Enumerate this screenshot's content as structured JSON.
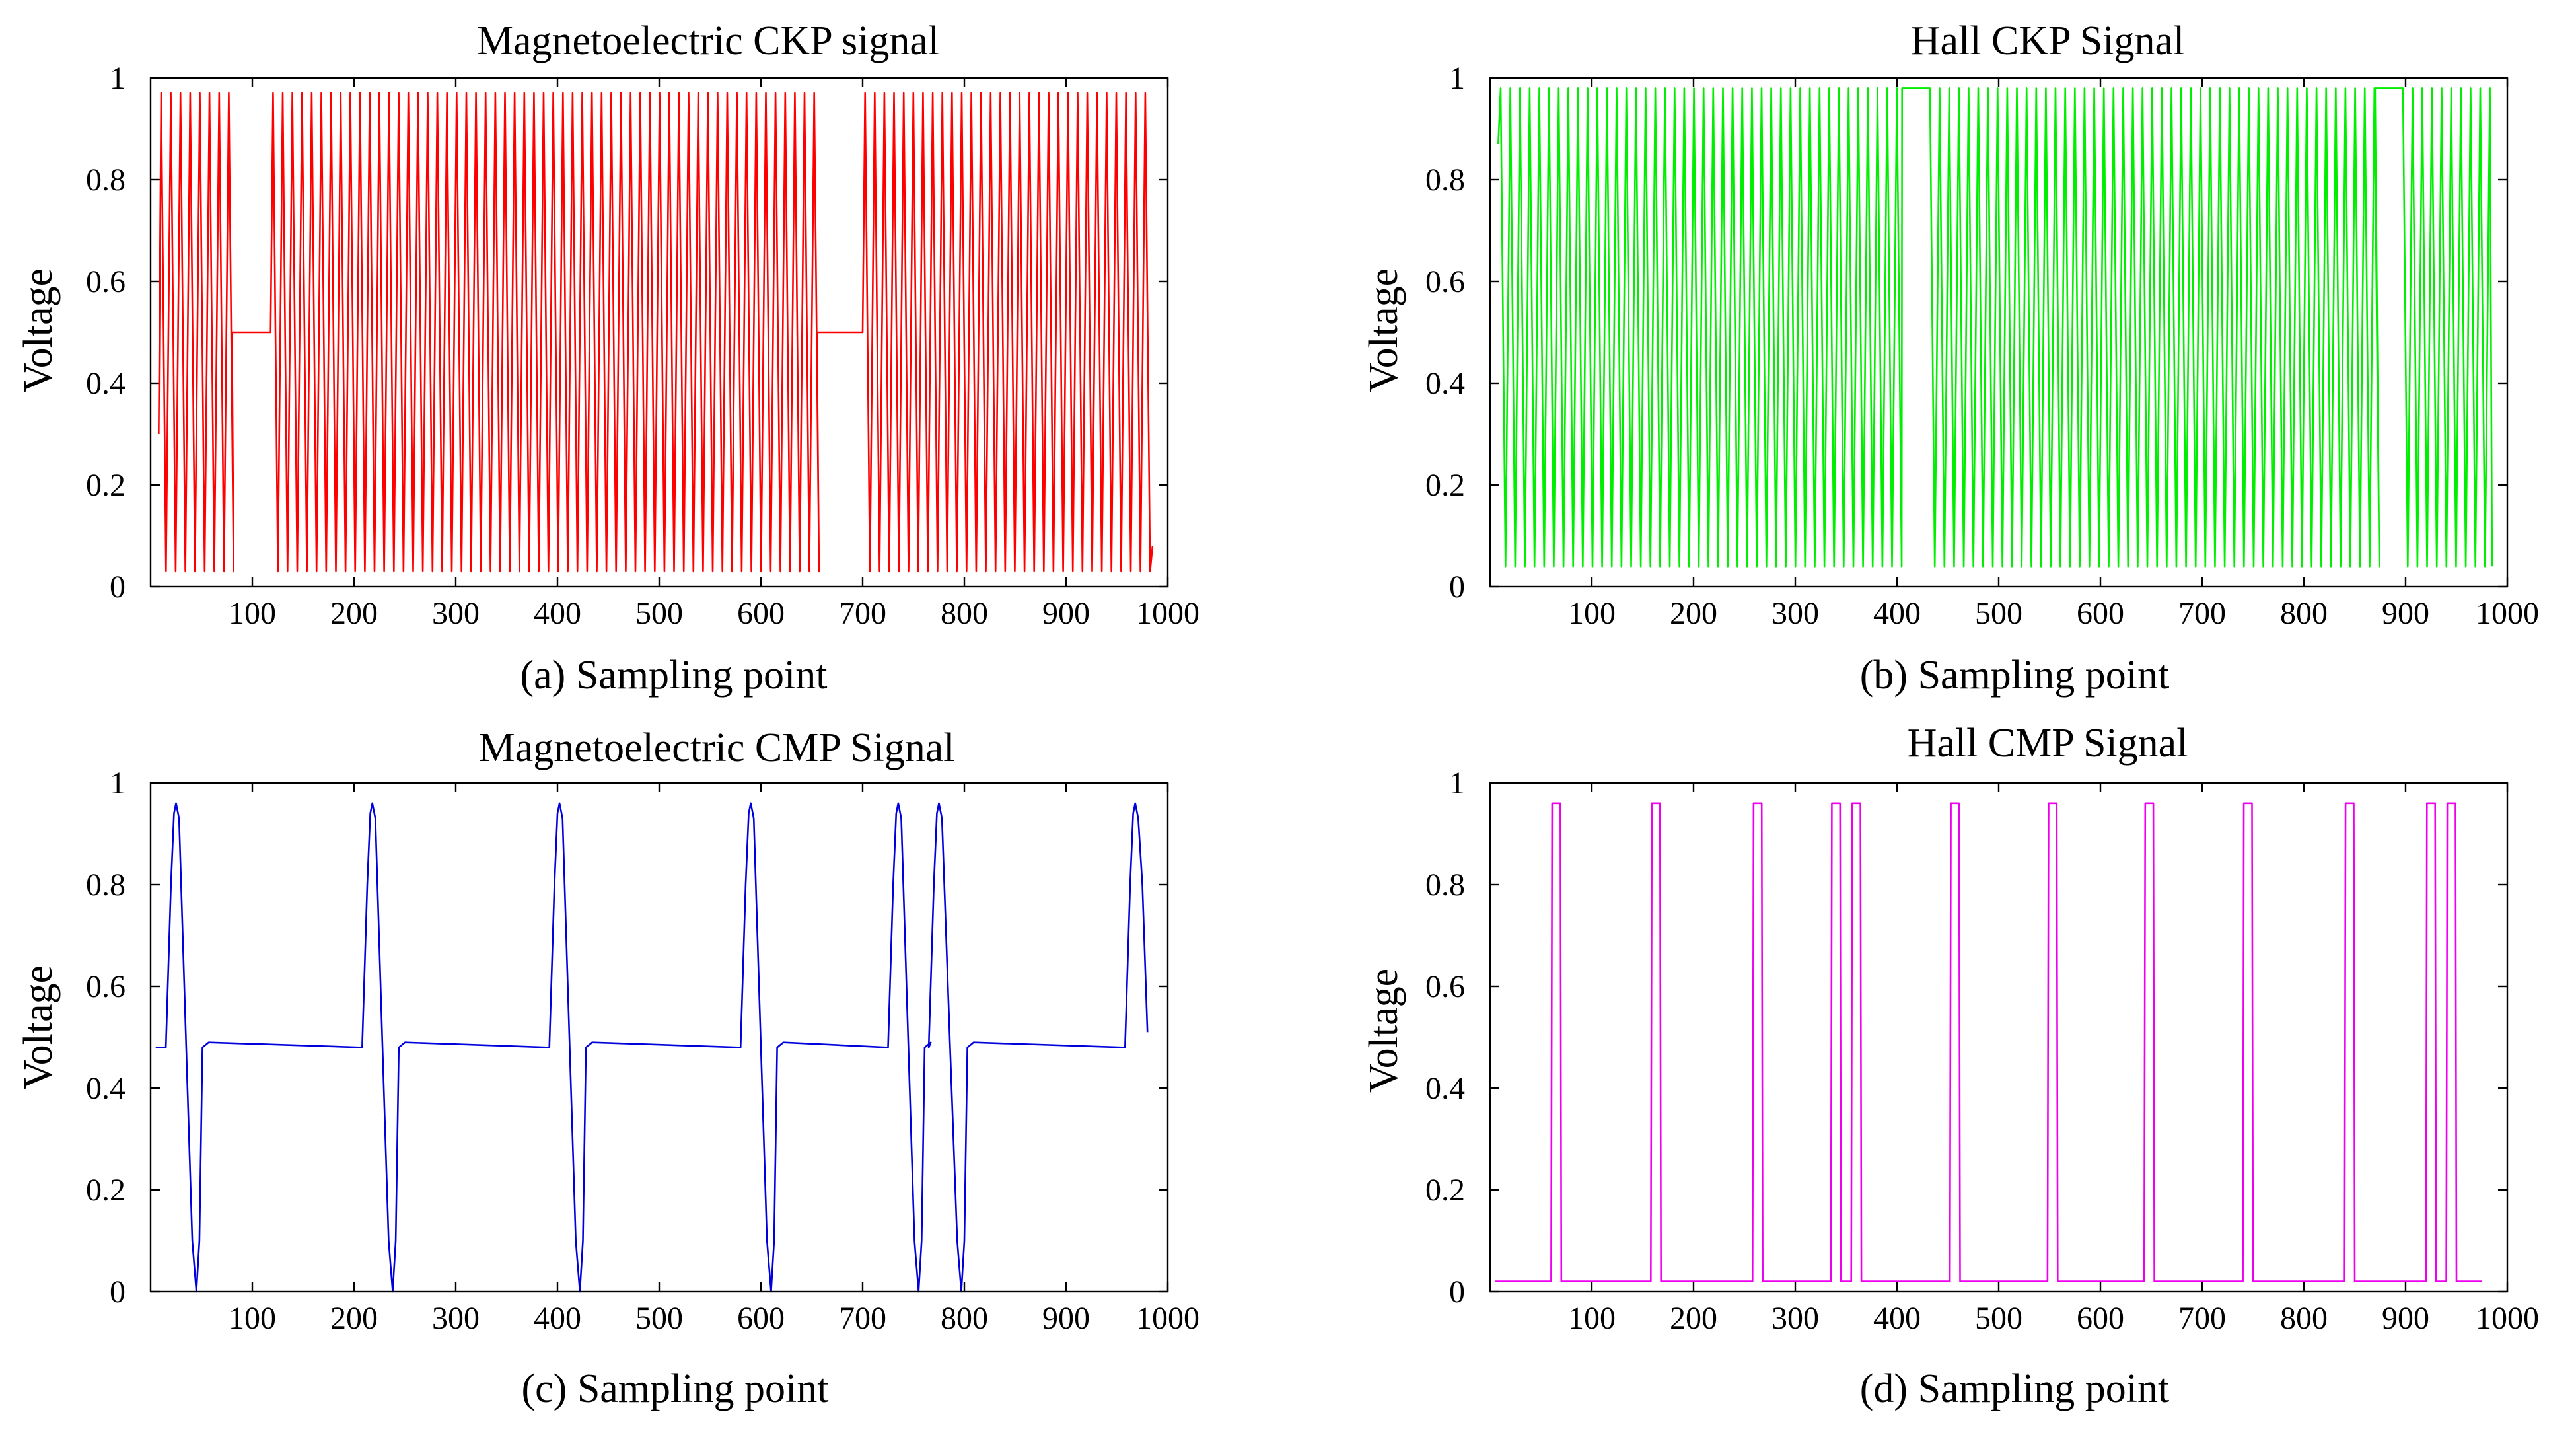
{
  "chart_data": [
    {
      "id": "a",
      "type": "line",
      "title": "Magnetoelectric CKP signal",
      "xlabel": "(a) Sampling point",
      "ylabel": "Voltage",
      "xlim": [
        0,
        1000
      ],
      "ylim": [
        0,
        1
      ],
      "xticks": [
        100,
        200,
        300,
        400,
        500,
        600,
        700,
        800,
        900,
        1000
      ],
      "xtick_labels": [
        "100",
        "200",
        "300",
        "400",
        "500",
        "600",
        "700",
        "800",
        "900",
        "1000"
      ],
      "yticks": [
        0,
        0.2,
        0.4,
        0.6,
        0.8,
        1
      ],
      "ytick_labels": [
        "0",
        "0.2",
        "0.4",
        "0.6",
        "0.8",
        "1"
      ],
      "grid": false,
      "series": [
        {
          "name": "Magnetoelectric CKP",
          "color": "#ff0000",
          "waveform": "oscillating square pulses between low and high with flat gaps at mid level",
          "low": 0.03,
          "high": 0.97,
          "mid": 0.5,
          "x_start": 8,
          "x_end": 985,
          "period": 9.5,
          "gaps": [
            [
              80,
              118
            ],
            [
              655,
              700
            ]
          ]
        }
      ]
    },
    {
      "id": "b",
      "type": "line",
      "title": "Hall CKP Signal",
      "xlabel": "(b) Sampling point",
      "ylabel": "Voltage",
      "xlim": [
        0,
        1000
      ],
      "ylim": [
        0,
        1
      ],
      "xticks": [
        100,
        200,
        300,
        400,
        500,
        600,
        700,
        800,
        900,
        1000
      ],
      "xtick_labels": [
        "100",
        "200",
        "300",
        "400",
        "500",
        "600",
        "700",
        "800",
        "900",
        "1000"
      ],
      "yticks": [
        0,
        0.2,
        0.4,
        0.6,
        0.8,
        1
      ],
      "ytick_labels": [
        "0",
        "0.2",
        "0.4",
        "0.6",
        "0.8",
        "1"
      ],
      "grid": false,
      "series": [
        {
          "name": "Hall CKP",
          "color": "#00ee00",
          "waveform": "square pulse train with flat high gaps",
          "low": 0.04,
          "high": 0.98,
          "x_start": 8,
          "x_end": 985,
          "period": 9.5,
          "gaps": [
            [
              405,
              430
            ],
            [
              870,
              895
            ]
          ]
        }
      ]
    },
    {
      "id": "c",
      "type": "line",
      "title": "Magnetoelectric CMP Signal",
      "xlabel": "(c) Sampling point",
      "ylabel": "Voltage",
      "xlim": [
        0,
        1000
      ],
      "ylim": [
        0,
        1
      ],
      "xticks": [
        100,
        200,
        300,
        400,
        500,
        600,
        700,
        800,
        900,
        1000
      ],
      "xtick_labels": [
        "100",
        "200",
        "300",
        "400",
        "500",
        "600",
        "700",
        "800",
        "900",
        "1000"
      ],
      "yticks": [
        0,
        0.2,
        0.4,
        0.6,
        0.8,
        1
      ],
      "ytick_labels": [
        "0",
        "0.2",
        "0.4",
        "0.6",
        "0.8",
        "1"
      ],
      "grid": false,
      "series": [
        {
          "name": "Magnetoelectric CMP",
          "color": "#0000dd",
          "waveform": "baseline with bipolar pulses (peak then trough)",
          "baseline": 0.48,
          "peak": 0.96,
          "trough": 0.0,
          "x_start": 5,
          "x_end": 980,
          "end_value": 0.51,
          "pulses": [
            {
              "peak_x": 25,
              "trough_x": 45
            },
            {
              "peak_x": 218,
              "trough_x": 238
            },
            {
              "peak_x": 402,
              "trough_x": 422
            },
            {
              "peak_x": 590,
              "trough_x": 610
            },
            {
              "peak_x": 735,
              "trough_x": 755
            },
            {
              "peak_x": 775,
              "trough_x": 797
            },
            {
              "peak_x": 968,
              "trough_x": null
            }
          ]
        }
      ]
    },
    {
      "id": "d",
      "type": "line",
      "title": "Hall CMP Signal",
      "xlabel": "(d) Sampling point",
      "ylabel": "Voltage",
      "xlim": [
        0,
        1000
      ],
      "ylim": [
        0,
        1
      ],
      "xticks": [
        100,
        200,
        300,
        400,
        500,
        600,
        700,
        800,
        900,
        1000
      ],
      "xtick_labels": [
        "100",
        "200",
        "300",
        "400",
        "500",
        "600",
        "700",
        "800",
        "900",
        "1000"
      ],
      "yticks": [
        0,
        0.2,
        0.4,
        0.6,
        0.8,
        1
      ],
      "ytick_labels": [
        "0",
        "0.2",
        "0.4",
        "0.6",
        "0.8",
        "1"
      ],
      "grid": false,
      "series": [
        {
          "name": "Hall CMP",
          "color": "#ee00ee",
          "waveform": "low baseline with narrow rectangular high pulses",
          "low": 0.02,
          "high": 0.96,
          "x_start": 5,
          "x_end": 975,
          "pulses": [
            [
              60,
              70
            ],
            [
              158,
              168
            ],
            [
              258,
              268
            ],
            [
              335,
              345
            ],
            [
              355,
              365
            ],
            [
              452,
              462
            ],
            [
              548,
              558
            ],
            [
              643,
              653
            ],
            [
              740,
              750
            ],
            [
              840,
              850
            ],
            [
              920,
              930
            ],
            [
              940,
              950
            ]
          ]
        }
      ]
    }
  ]
}
